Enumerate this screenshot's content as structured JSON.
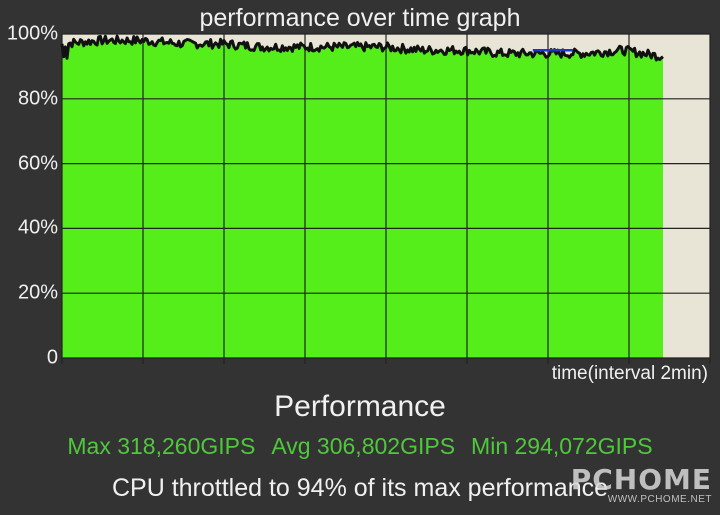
{
  "title": "performance over time graph",
  "x_caption": "time(interval 2min)",
  "heading": "Performance",
  "stats": {
    "max": "Max 318,260GIPS",
    "avg": "Avg 306,802GIPS",
    "min": "Min 294,072GIPS"
  },
  "summary": "CPU throttled to 94% of its max performance",
  "watermark": {
    "logo": "PCHOME",
    "url": "WWW.PCHOME.NET"
  },
  "colors": {
    "background": "#333333",
    "plot_background": "#e8e4d6",
    "fill": "#55ee1a",
    "line": "#111111",
    "highlight": "#2233cc",
    "stats_text": "#4fc83c"
  },
  "chart_data": {
    "type": "area",
    "title": "performance over time graph",
    "xlabel": "time(interval 2min)",
    "ylabel": "",
    "y_ticks": [
      "0",
      "20%",
      "40%",
      "60%",
      "80%",
      "100%"
    ],
    "ylim": [
      0,
      100
    ],
    "grid": true,
    "x_minutes": [
      0,
      2,
      4,
      6,
      8,
      10,
      12,
      14,
      16,
      18,
      20,
      22,
      24,
      26,
      28,
      30
    ],
    "values": [
      97,
      98,
      98,
      97,
      97,
      96,
      96,
      96,
      96,
      95,
      95,
      94,
      94,
      94,
      95,
      93
    ],
    "highlight_segment": {
      "from_minute": 23.5,
      "to_minute": 25.5,
      "value": 95
    }
  }
}
